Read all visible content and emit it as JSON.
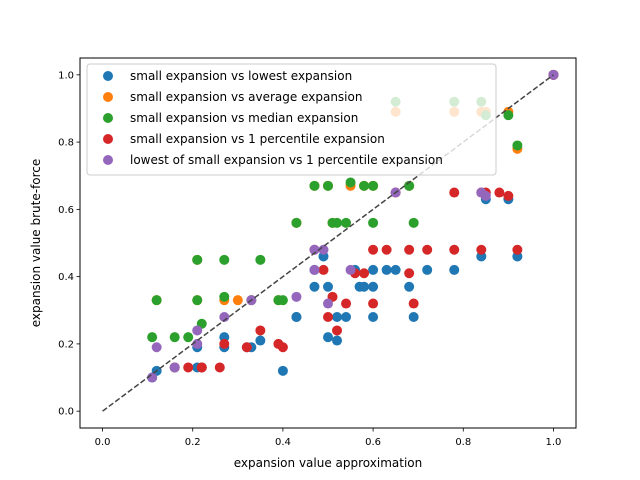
{
  "chart_data": {
    "type": "scatter",
    "xlabel": "expansion value approximation",
    "ylabel": "expansion value brute-force",
    "xlim": [
      -0.05,
      1.05
    ],
    "ylim": [
      -0.05,
      1.05
    ],
    "xticks": [
      0.0,
      0.2,
      0.4,
      0.6,
      0.8,
      1.0
    ],
    "yticks": [
      0.0,
      0.2,
      0.4,
      0.6,
      0.8,
      1.0
    ],
    "tick_labels": {
      "x": [
        "0.0",
        "0.2",
        "0.4",
        "0.6",
        "0.8",
        "1.0"
      ],
      "y": [
        "0.0",
        "0.2",
        "0.4",
        "0.6",
        "0.8",
        "1.0"
      ]
    },
    "grid": false,
    "legend_position": "upper-left",
    "reference_line": {
      "style": "dashed",
      "color": "#444444",
      "from": [
        0,
        0
      ],
      "to": [
        1,
        1
      ]
    },
    "series": [
      {
        "name": "small expansion vs lowest expansion",
        "color": "#1f77b4",
        "points": [
          [
            0.11,
            0.1
          ],
          [
            0.12,
            0.12
          ],
          [
            0.16,
            0.13
          ],
          [
            0.21,
            0.19
          ],
          [
            0.21,
            0.13
          ],
          [
            0.22,
            0.13
          ],
          [
            0.27,
            0.19
          ],
          [
            0.27,
            0.22
          ],
          [
            0.32,
            0.19
          ],
          [
            0.33,
            0.19
          ],
          [
            0.35,
            0.21
          ],
          [
            0.4,
            0.12
          ],
          [
            0.43,
            0.28
          ],
          [
            0.43,
            0.28
          ],
          [
            0.47,
            0.37
          ],
          [
            0.47,
            0.42
          ],
          [
            0.49,
            0.46
          ],
          [
            0.5,
            0.37
          ],
          [
            0.5,
            0.22
          ],
          [
            0.52,
            0.21
          ],
          [
            0.52,
            0.28
          ],
          [
            0.54,
            0.28
          ],
          [
            0.56,
            0.42
          ],
          [
            0.57,
            0.37
          ],
          [
            0.58,
            0.37
          ],
          [
            0.6,
            0.28
          ],
          [
            0.6,
            0.37
          ],
          [
            0.6,
            0.42
          ],
          [
            0.63,
            0.42
          ],
          [
            0.65,
            0.42
          ],
          [
            0.68,
            0.37
          ],
          [
            0.69,
            0.28
          ],
          [
            0.72,
            0.42
          ],
          [
            0.78,
            0.42
          ],
          [
            0.84,
            0.46
          ],
          [
            0.85,
            0.63
          ],
          [
            0.9,
            0.63
          ],
          [
            0.92,
            0.46
          ],
          [
            1.0,
            1.0
          ]
        ]
      },
      {
        "name": "small expansion vs average expansion",
        "color": "#ff7f0e",
        "points": [
          [
            0.12,
            0.33
          ],
          [
            0.21,
            0.33
          ],
          [
            0.21,
            0.45
          ],
          [
            0.27,
            0.33
          ],
          [
            0.3,
            0.33
          ],
          [
            0.33,
            0.33
          ],
          [
            0.39,
            0.33
          ],
          [
            0.43,
            0.56
          ],
          [
            0.47,
            0.67
          ],
          [
            0.5,
            0.67
          ],
          [
            0.51,
            0.56
          ],
          [
            0.55,
            0.67
          ],
          [
            0.58,
            0.67
          ],
          [
            0.6,
            0.67
          ],
          [
            0.65,
            0.89
          ],
          [
            0.68,
            0.67
          ],
          [
            0.78,
            0.89
          ],
          [
            0.84,
            0.89
          ],
          [
            0.85,
            0.89
          ],
          [
            0.9,
            0.89
          ],
          [
            0.92,
            0.78
          ],
          [
            1.0,
            1.0
          ]
        ]
      },
      {
        "name": "small expansion vs median expansion",
        "color": "#2ca02c",
        "points": [
          [
            0.11,
            0.22
          ],
          [
            0.12,
            0.33
          ],
          [
            0.16,
            0.22
          ],
          [
            0.19,
            0.22
          ],
          [
            0.21,
            0.33
          ],
          [
            0.21,
            0.45
          ],
          [
            0.22,
            0.26
          ],
          [
            0.27,
            0.45
          ],
          [
            0.27,
            0.34
          ],
          [
            0.33,
            0.33
          ],
          [
            0.35,
            0.45
          ],
          [
            0.39,
            0.33
          ],
          [
            0.4,
            0.33
          ],
          [
            0.43,
            0.56
          ],
          [
            0.47,
            0.67
          ],
          [
            0.5,
            0.67
          ],
          [
            0.51,
            0.56
          ],
          [
            0.52,
            0.56
          ],
          [
            0.54,
            0.56
          ],
          [
            0.55,
            0.68
          ],
          [
            0.58,
            0.67
          ],
          [
            0.6,
            0.56
          ],
          [
            0.6,
            0.67
          ],
          [
            0.65,
            0.92
          ],
          [
            0.68,
            0.67
          ],
          [
            0.69,
            0.56
          ],
          [
            0.78,
            0.92
          ],
          [
            0.84,
            0.92
          ],
          [
            0.85,
            0.88
          ],
          [
            0.9,
            0.88
          ],
          [
            0.92,
            0.79
          ],
          [
            1.0,
            1.0
          ]
        ]
      },
      {
        "name": "small expansion vs 1 percentile expansion",
        "color": "#d62728",
        "points": [
          [
            0.16,
            0.13
          ],
          [
            0.19,
            0.13
          ],
          [
            0.22,
            0.13
          ],
          [
            0.22,
            0.13
          ],
          [
            0.26,
            0.13
          ],
          [
            0.27,
            0.2
          ],
          [
            0.32,
            0.19
          ],
          [
            0.35,
            0.24
          ],
          [
            0.39,
            0.2
          ],
          [
            0.4,
            0.19
          ],
          [
            0.47,
            0.48
          ],
          [
            0.49,
            0.42
          ],
          [
            0.5,
            0.28
          ],
          [
            0.51,
            0.34
          ],
          [
            0.52,
            0.24
          ],
          [
            0.54,
            0.32
          ],
          [
            0.56,
            0.41
          ],
          [
            0.58,
            0.41
          ],
          [
            0.6,
            0.32
          ],
          [
            0.6,
            0.48
          ],
          [
            0.63,
            0.48
          ],
          [
            0.65,
            0.65
          ],
          [
            0.68,
            0.41
          ],
          [
            0.68,
            0.48
          ],
          [
            0.69,
            0.32
          ],
          [
            0.72,
            0.48
          ],
          [
            0.78,
            0.48
          ],
          [
            0.78,
            0.65
          ],
          [
            0.84,
            0.65
          ],
          [
            0.84,
            0.48
          ],
          [
            0.85,
            0.65
          ],
          [
            0.88,
            0.65
          ],
          [
            0.9,
            0.64
          ],
          [
            0.92,
            0.48
          ],
          [
            1.0,
            1.0
          ]
        ]
      },
      {
        "name": "lowest of small expansion vs 1 percentile expansion",
        "color": "#9467bd",
        "points": [
          [
            0.11,
            0.1
          ],
          [
            0.12,
            0.19
          ],
          [
            0.16,
            0.13
          ],
          [
            0.21,
            0.24
          ],
          [
            0.21,
            0.2
          ],
          [
            0.27,
            0.28
          ],
          [
            0.33,
            0.33
          ],
          [
            0.43,
            0.34
          ],
          [
            0.47,
            0.48
          ],
          [
            0.47,
            0.42
          ],
          [
            0.49,
            0.48
          ],
          [
            0.5,
            0.32
          ],
          [
            0.55,
            0.42
          ],
          [
            0.65,
            0.65
          ],
          [
            0.84,
            0.65
          ],
          [
            0.85,
            0.64
          ],
          [
            1.0,
            1.0
          ]
        ]
      }
    ]
  }
}
